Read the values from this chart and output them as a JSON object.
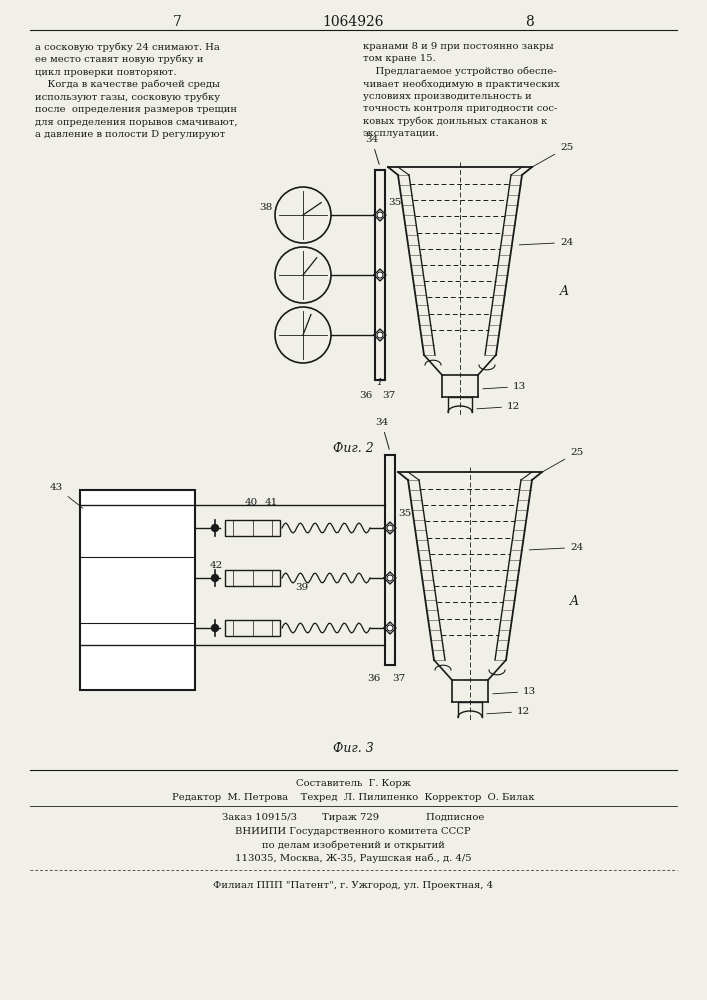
{
  "page_num_left": "7",
  "page_num_center": "1064926",
  "page_num_right": "8",
  "text_left": "а сосковую трубку 24 снимают. На\nее место ставят новую трубку и\nцикл проверки повторяют.\n    Когда в качестве рабочей среды\nиспользуют газы, сосковую трубку\nпосле  определения размеров трещин\nдля определения порывов смачивают,\nа давление в полости D регулируют",
  "text_right": "кранами 8 и 9 при постоянно закры\nтом кране 15.\n    Предлагаемое устройство обеспе-\nчивает необходимую в практических\nусловиях производительность и\nточность контроля пригодности сос-\nковых трубок доильных стаканов к\nэксплуатации.",
  "fig2_label": "Фиг. 2",
  "fig3_label": "Фиг. 3",
  "footer_line1": "Составитель  Г. Корж",
  "footer_line2": "Редактор  М. Петрова    Техред  Л. Пилипенко  Корректор  О. Билак",
  "footer_line3": "Заказ 10915/3        Тираж 729               Подписное",
  "footer_line4": "ВНИИПИ Государственного комитета СССР",
  "footer_line5": "по делам изобретений и открытий",
  "footer_line6": "113035, Москва, Ж-35, Раушская наб., д. 4/5",
  "footer_line7": "Филиал ППП \"Патент\", г. Ужгород, ул. Проектная, 4",
  "bg_color": "#f0efe8",
  "text_color": "#1a1a1a",
  "line_color": "#1a1a1a"
}
